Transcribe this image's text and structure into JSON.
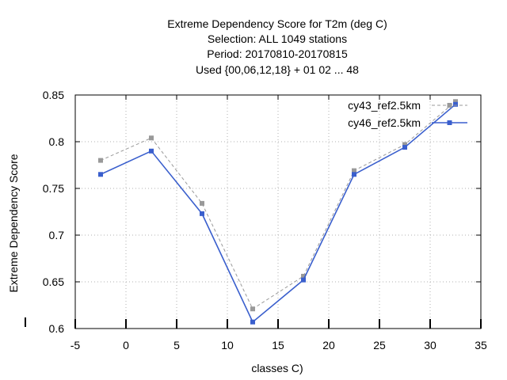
{
  "chart_data": {
    "type": "line",
    "title": [
      "Extreme Dependency Score  for T2m (deg C)",
      "Selection: ALL    1049 stations",
      "Period: 20170810-20170815",
      "Used {00,06,12,18} + 01 02 ... 48"
    ],
    "xlabel": "classes C)",
    "ylabel": "Extreme Dependency Score",
    "xlim": [
      -5,
      35
    ],
    "ylim": [
      0.6,
      0.85
    ],
    "xticks": [
      -5,
      0,
      5,
      10,
      15,
      20,
      25,
      30,
      35
    ],
    "yticks": [
      0.6,
      0.65,
      0.7,
      0.75,
      0.8,
      0.85
    ],
    "ytick_labels": [
      "0.6",
      "0.65",
      "0.7",
      "0.75",
      "0.8",
      "0.85"
    ],
    "grid": true,
    "legend_position": "top-right",
    "x": [
      -2.5,
      2.5,
      7.5,
      12.5,
      17.5,
      22.5,
      27.5,
      32.5
    ],
    "series": [
      {
        "name": "cy43_ref2.5km",
        "color": "#999999",
        "style": "dashed",
        "values": [
          0.78,
          0.804,
          0.734,
          0.621,
          0.656,
          0.769,
          0.797,
          0.843
        ]
      },
      {
        "name": "cy46_ref2.5km",
        "color": "#3a5fcd",
        "style": "solid",
        "values": [
          0.765,
          0.79,
          0.723,
          0.607,
          0.652,
          0.765,
          0.794,
          0.84
        ]
      }
    ]
  }
}
